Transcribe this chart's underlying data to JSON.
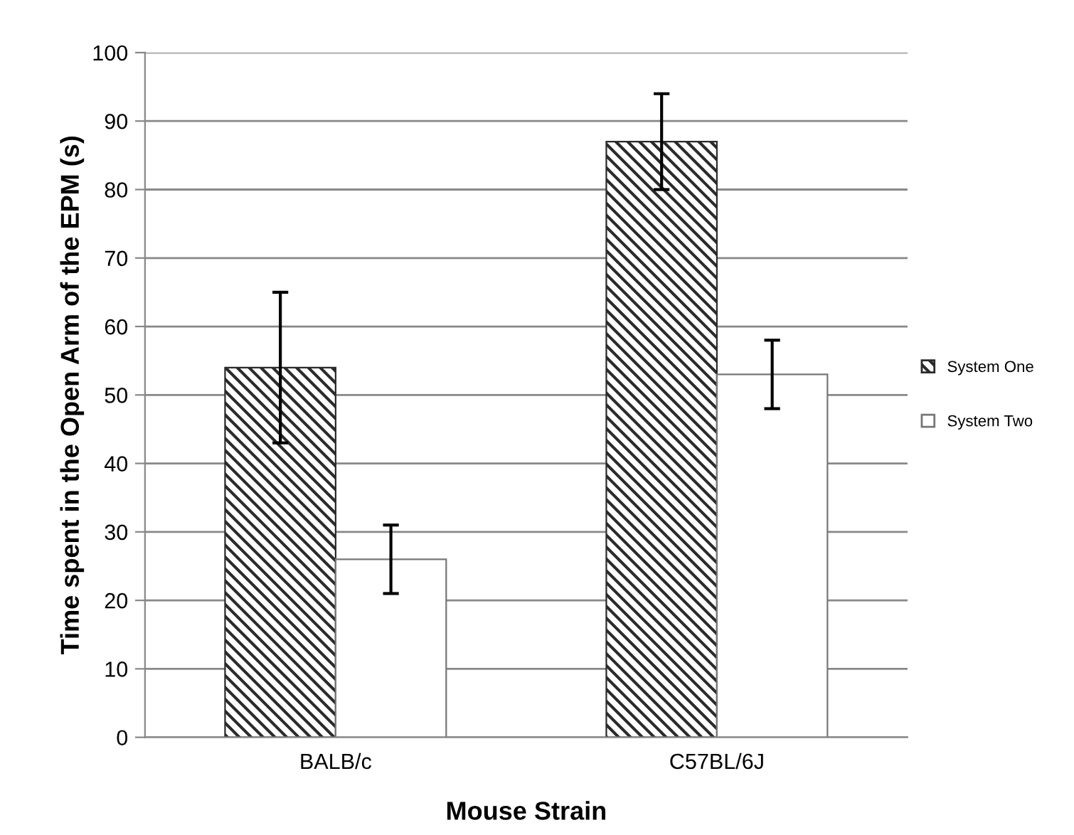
{
  "chart_data": {
    "type": "bar",
    "xlabel": "Mouse Strain",
    "ylabel": "Time spent in the Open Arm of the EPM (s)",
    "categories": [
      "BALB/c",
      "C57BL/6J"
    ],
    "series": [
      {
        "name": "System One",
        "color": "#2b2b2b",
        "values": [
          54,
          87
        ],
        "errors": [
          11,
          7
        ]
      },
      {
        "name": "System Two",
        "color": "#ffffff",
        "values": [
          26,
          53
        ],
        "errors": [
          5,
          5
        ]
      }
    ],
    "ylim": [
      0,
      100
    ],
    "yticks": [
      0,
      10,
      20,
      30,
      40,
      50,
      60,
      70,
      80,
      90,
      100
    ],
    "grid": "y",
    "legend": "right"
  }
}
